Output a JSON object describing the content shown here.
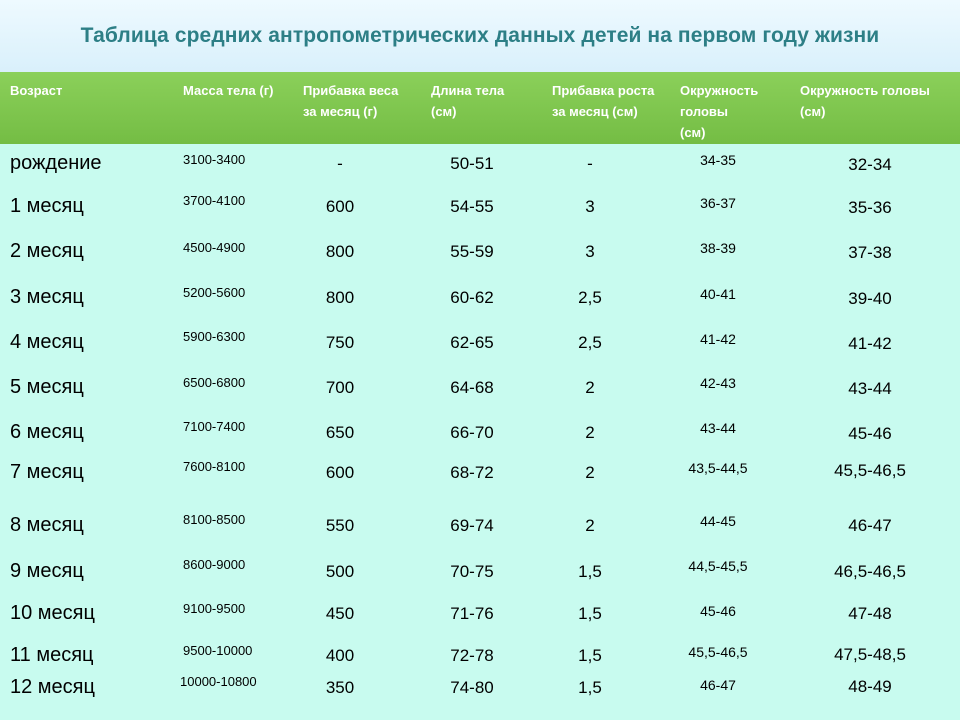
{
  "title": "Таблица средних антропометрических данных детей на первом году жизни",
  "headers": {
    "age": "Возраст",
    "mass": "Масса тела (г)",
    "weight_gain": "Прибавка веса\nза месяц (г)",
    "length": "Длина тела\n(см)",
    "height_gain": "Прибавка роста\nза месяц (см)",
    "head_circ": "Окружность\nголовы\n(см)",
    "head_circ2": "Окружность головы\n(см)"
  },
  "rows": [
    {
      "age": "рождение",
      "mass": "3100-3400",
      "weight_gain": "-",
      "length": "50-51",
      "height_gain": "-",
      "head": "34-35",
      "head2": "32-34"
    },
    {
      "age": "1 месяц",
      "mass": "3700-4100",
      "weight_gain": "600",
      "length": "54-55",
      "height_gain": "3",
      "head": "36-37",
      "head2": "35-36"
    },
    {
      "age": "2 месяц",
      "mass": "4500-4900",
      "weight_gain": "800",
      "length": "55-59",
      "height_gain": "3",
      "head": "38-39",
      "head2": "37-38"
    },
    {
      "age": "3 месяц",
      "mass": "5200-5600",
      "weight_gain": "800",
      "length": "60-62",
      "height_gain": "2,5",
      "head": "40-41",
      "head2": "39-40"
    },
    {
      "age": "4 месяц",
      "mass": "5900-6300",
      "weight_gain": "750",
      "length": "62-65",
      "height_gain": "2,5",
      "head": "41-42",
      "head2": "41-42"
    },
    {
      "age": "5 месяц",
      "mass": "6500-6800",
      "weight_gain": "700",
      "length": "64-68",
      "height_gain": "2",
      "head": "42-43",
      "head2": "43-44"
    },
    {
      "age": "6 месяц",
      "mass": "7100-7400",
      "weight_gain": "650",
      "length": "66-70",
      "height_gain": "2",
      "head": "43-44",
      "head2": "45-46"
    },
    {
      "age": "7 месяц",
      "mass": "7600-8100",
      "weight_gain": "600",
      "length": "68-72",
      "height_gain": "2",
      "head": "43,5-44,5",
      "head2": "45,5-46,5"
    },
    {
      "age": "8 месяц",
      "mass": "8100-8500",
      "weight_gain": "550",
      "length": "69-74",
      "height_gain": "2",
      "head": "44-45",
      "head2": "46-47"
    },
    {
      "age": "9 месяц",
      "mass": "8600-9000",
      "weight_gain": "500",
      "length": "70-75",
      "height_gain": "1,5",
      "head": "44,5-45,5",
      "head2": "46,5-46,5"
    },
    {
      "age": "10 месяц",
      "mass": "9100-9500",
      "weight_gain": "450",
      "length": "71-76",
      "height_gain": "1,5",
      "head": "45-46",
      "head2": "47-48"
    },
    {
      "age": "11 месяц",
      "mass": "9500-10000",
      "weight_gain": "400",
      "length": "72-78",
      "height_gain": "1,5",
      "head": "45,5-46,5",
      "head2": "47,5-48,5"
    },
    {
      "age": "12 месяц",
      "mass": "10000-10800",
      "weight_gain": "350",
      "length": "74-80",
      "height_gain": "1,5",
      "head": "46-47",
      "head2": "48-49"
    }
  ]
}
